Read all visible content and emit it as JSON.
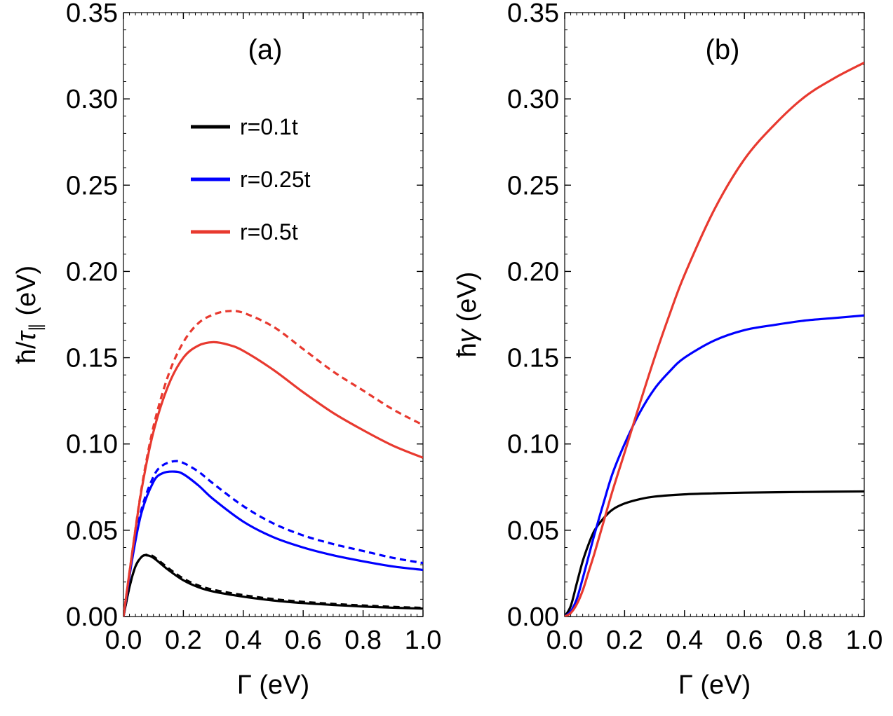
{
  "chart_data": [
    {
      "type": "line",
      "panel_label": "(a)",
      "xlabel": "Γ (eV)",
      "ylabel": "ħ/τ∥ (eV)",
      "ylabel_parts": {
        "pre": "ħ/",
        "sym": "τ",
        "sub": "∥",
        "post": " (eV)"
      },
      "xlim": [
        0,
        1.0
      ],
      "ylim": [
        0,
        0.35
      ],
      "xticks": [
        "0.0",
        "0.2",
        "0.4",
        "0.6",
        "0.8",
        "1.0"
      ],
      "yticks": [
        "0.00",
        "0.05",
        "0.10",
        "0.15",
        "0.20",
        "0.25",
        "0.30",
        "0.35"
      ],
      "legend_position": "top-center",
      "legend": [
        {
          "label": "r=0.1t",
          "color": "#000000"
        },
        {
          "label": "r=0.25t",
          "color": "#0000ff"
        },
        {
          "label": "r=0.5t",
          "color": "#e8392f"
        }
      ],
      "series": [
        {
          "name": "r=0.1t",
          "style": "solid",
          "color": "#000000",
          "x": [
            0,
            0.02,
            0.04,
            0.06,
            0.075,
            0.1,
            0.15,
            0.2,
            0.25,
            0.3,
            0.4,
            0.5,
            0.6,
            0.7,
            0.8,
            0.9,
            1.0
          ],
          "y": [
            0,
            0.017,
            0.029,
            0.0345,
            0.0355,
            0.034,
            0.027,
            0.021,
            0.017,
            0.0145,
            0.0115,
            0.0093,
            0.0078,
            0.0067,
            0.0058,
            0.0051,
            0.0046
          ]
        },
        {
          "name": "r=0.1t",
          "style": "dashed",
          "color": "#000000",
          "x": [
            0,
            0.02,
            0.04,
            0.06,
            0.08,
            0.1,
            0.15,
            0.2,
            0.25,
            0.3,
            0.4,
            0.5,
            0.6,
            0.7,
            0.8,
            0.9,
            1.0
          ],
          "y": [
            0,
            0.017,
            0.029,
            0.0345,
            0.0358,
            0.0348,
            0.028,
            0.022,
            0.018,
            0.0155,
            0.0124,
            0.0101,
            0.0085,
            0.0073,
            0.0064,
            0.0056,
            0.005
          ]
        },
        {
          "name": "r=0.25t",
          "style": "solid",
          "color": "#0000ff",
          "x": [
            0,
            0.03,
            0.06,
            0.1,
            0.13,
            0.17,
            0.2,
            0.25,
            0.3,
            0.4,
            0.5,
            0.6,
            0.7,
            0.8,
            0.9,
            1.0
          ],
          "y": [
            0,
            0.034,
            0.06,
            0.078,
            0.083,
            0.084,
            0.0825,
            0.076,
            0.068,
            0.055,
            0.046,
            0.04,
            0.0355,
            0.032,
            0.029,
            0.027
          ]
        },
        {
          "name": "r=0.25t",
          "style": "dashed",
          "color": "#0000ff",
          "x": [
            0,
            0.03,
            0.06,
            0.1,
            0.13,
            0.17,
            0.2,
            0.25,
            0.3,
            0.4,
            0.5,
            0.6,
            0.7,
            0.8,
            0.9,
            1.0
          ],
          "y": [
            0,
            0.035,
            0.062,
            0.081,
            0.0875,
            0.09,
            0.089,
            0.084,
            0.077,
            0.064,
            0.054,
            0.047,
            0.042,
            0.038,
            0.034,
            0.031
          ]
        },
        {
          "name": "r=0.5t",
          "style": "solid",
          "color": "#e8392f",
          "x": [
            0,
            0.03,
            0.06,
            0.1,
            0.15,
            0.2,
            0.25,
            0.3,
            0.35,
            0.4,
            0.5,
            0.6,
            0.7,
            0.8,
            0.9,
            1.0
          ],
          "y": [
            0,
            0.038,
            0.073,
            0.107,
            0.134,
            0.15,
            0.157,
            0.159,
            0.1575,
            0.154,
            0.143,
            0.13,
            0.118,
            0.108,
            0.099,
            0.092
          ]
        },
        {
          "name": "r=0.5t",
          "style": "dashed",
          "color": "#e8392f",
          "x": [
            0,
            0.03,
            0.06,
            0.1,
            0.15,
            0.2,
            0.25,
            0.3,
            0.35,
            0.4,
            0.5,
            0.6,
            0.7,
            0.8,
            0.9,
            1.0
          ],
          "y": [
            0,
            0.038,
            0.074,
            0.11,
            0.14,
            0.159,
            0.17,
            0.175,
            0.177,
            0.176,
            0.168,
            0.155,
            0.142,
            0.131,
            0.12,
            0.111
          ]
        }
      ]
    },
    {
      "type": "line",
      "panel_label": "(b)",
      "xlabel": "Γ (eV)",
      "ylabel": "ħγ (eV)",
      "ylabel_parts": {
        "pre": "ħ",
        "sym": "γ",
        "sub": "",
        "post": " (eV)"
      },
      "xlim": [
        0,
        1.0
      ],
      "ylim": [
        0,
        0.35
      ],
      "xticks": [
        "0.0",
        "0.2",
        "0.4",
        "0.6",
        "0.8",
        "1.0"
      ],
      "yticks": [
        "0.00",
        "0.05",
        "0.10",
        "0.15",
        "0.20",
        "0.25",
        "0.30",
        "0.35"
      ],
      "series": [
        {
          "name": "r=0.1t",
          "style": "solid",
          "color": "#000000",
          "x": [
            0,
            0.02,
            0.04,
            0.06,
            0.08,
            0.1,
            0.13,
            0.16,
            0.2,
            0.25,
            0.3,
            0.4,
            0.5,
            0.6,
            0.8,
            1.0
          ],
          "y": [
            0,
            0.006,
            0.019,
            0.032,
            0.042,
            0.05,
            0.057,
            0.062,
            0.0655,
            0.068,
            0.0695,
            0.0708,
            0.0714,
            0.0718,
            0.0722,
            0.0725
          ]
        },
        {
          "name": "r=0.25t",
          "style": "solid",
          "color": "#0000ff",
          "x": [
            0,
            0.02,
            0.04,
            0.06,
            0.08,
            0.1,
            0.13,
            0.16,
            0.2,
            0.25,
            0.3,
            0.35,
            0.4,
            0.5,
            0.6,
            0.7,
            0.8,
            0.9,
            1.0
          ],
          "y": [
            0,
            0.003,
            0.01,
            0.022,
            0.035,
            0.048,
            0.066,
            0.083,
            0.1,
            0.118,
            0.132,
            0.142,
            0.15,
            0.16,
            0.166,
            0.169,
            0.1715,
            0.173,
            0.1745
          ]
        },
        {
          "name": "r=0.5t",
          "style": "solid",
          "color": "#e8392f",
          "x": [
            0,
            0.02,
            0.04,
            0.06,
            0.08,
            0.1,
            0.13,
            0.16,
            0.2,
            0.25,
            0.3,
            0.35,
            0.4,
            0.5,
            0.6,
            0.7,
            0.8,
            0.9,
            1.0
          ],
          "y": [
            0,
            0.002,
            0.007,
            0.015,
            0.026,
            0.037,
            0.055,
            0.073,
            0.095,
            0.123,
            0.15,
            0.175,
            0.198,
            0.236,
            0.265,
            0.285,
            0.301,
            0.312,
            0.321
          ]
        }
      ]
    }
  ]
}
